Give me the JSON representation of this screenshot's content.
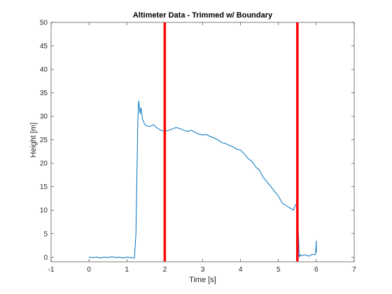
{
  "chart_data": {
    "type": "line",
    "title": "Altimeter Data - Trimmed w/ Boundary",
    "xlabel": "Time [s]",
    "ylabel": "Height [m]",
    "xlim": [
      -1,
      7
    ],
    "ylim": [
      -1,
      50
    ],
    "xticks": [
      -1,
      0,
      1,
      2,
      3,
      4,
      5,
      6,
      7
    ],
    "yticks": [
      0,
      5,
      10,
      15,
      20,
      25,
      30,
      35,
      40,
      45,
      50
    ],
    "grid": false,
    "series": [
      {
        "color": "#0072bd",
        "x": [
          0.0,
          0.1,
          0.2,
          0.3,
          0.4,
          0.5,
          0.6,
          0.7,
          0.8,
          0.9,
          1.0,
          1.1,
          1.2,
          1.24,
          1.27,
          1.29,
          1.31,
          1.33,
          1.35,
          1.37,
          1.39,
          1.41,
          1.43,
          1.46,
          1.5,
          1.6,
          1.7,
          1.8,
          1.9,
          2.0,
          2.1,
          2.2,
          2.3,
          2.4,
          2.5,
          2.6,
          2.7,
          2.8,
          2.9,
          3.0,
          3.1,
          3.2,
          3.3,
          3.4,
          3.5,
          3.6,
          3.7,
          3.8,
          3.9,
          4.0,
          4.1,
          4.2,
          4.3,
          4.4,
          4.5,
          4.6,
          4.7,
          4.8,
          4.9,
          5.0,
          5.1,
          5.2,
          5.3,
          5.4,
          5.45,
          5.5,
          5.55,
          5.58,
          5.6,
          5.7,
          5.8,
          5.9,
          5.95,
          5.98,
          6.0,
          6.0
        ],
        "y": [
          0.0,
          -0.1,
          0.0,
          -0.2,
          0.0,
          -0.1,
          0.1,
          -0.1,
          0.0,
          -0.2,
          0.0,
          -0.1,
          -0.2,
          5.0,
          20.0,
          29.0,
          33.3,
          32.0,
          30.5,
          31.8,
          31.0,
          29.5,
          29.0,
          28.5,
          28.0,
          27.8,
          28.2,
          27.5,
          27.0,
          26.8,
          27.0,
          27.3,
          27.6,
          27.4,
          27.0,
          26.8,
          27.0,
          26.6,
          26.2,
          26.0,
          26.1,
          25.7,
          25.4,
          25.0,
          24.4,
          24.2,
          23.8,
          23.5,
          23.0,
          22.8,
          22.0,
          21.0,
          20.4,
          19.2,
          18.5,
          17.0,
          16.0,
          15.0,
          14.0,
          13.0,
          11.5,
          11.0,
          10.5,
          10.0,
          11.2,
          11.2,
          0.0,
          0.5,
          0.3,
          0.5,
          0.2,
          0.6,
          0.5,
          0.6,
          3.5,
          1.0
        ]
      }
    ],
    "boundaries": [
      {
        "x": 2.0,
        "color": "#ff0000"
      },
      {
        "x": 5.5,
        "color": "#ff0000"
      }
    ]
  }
}
